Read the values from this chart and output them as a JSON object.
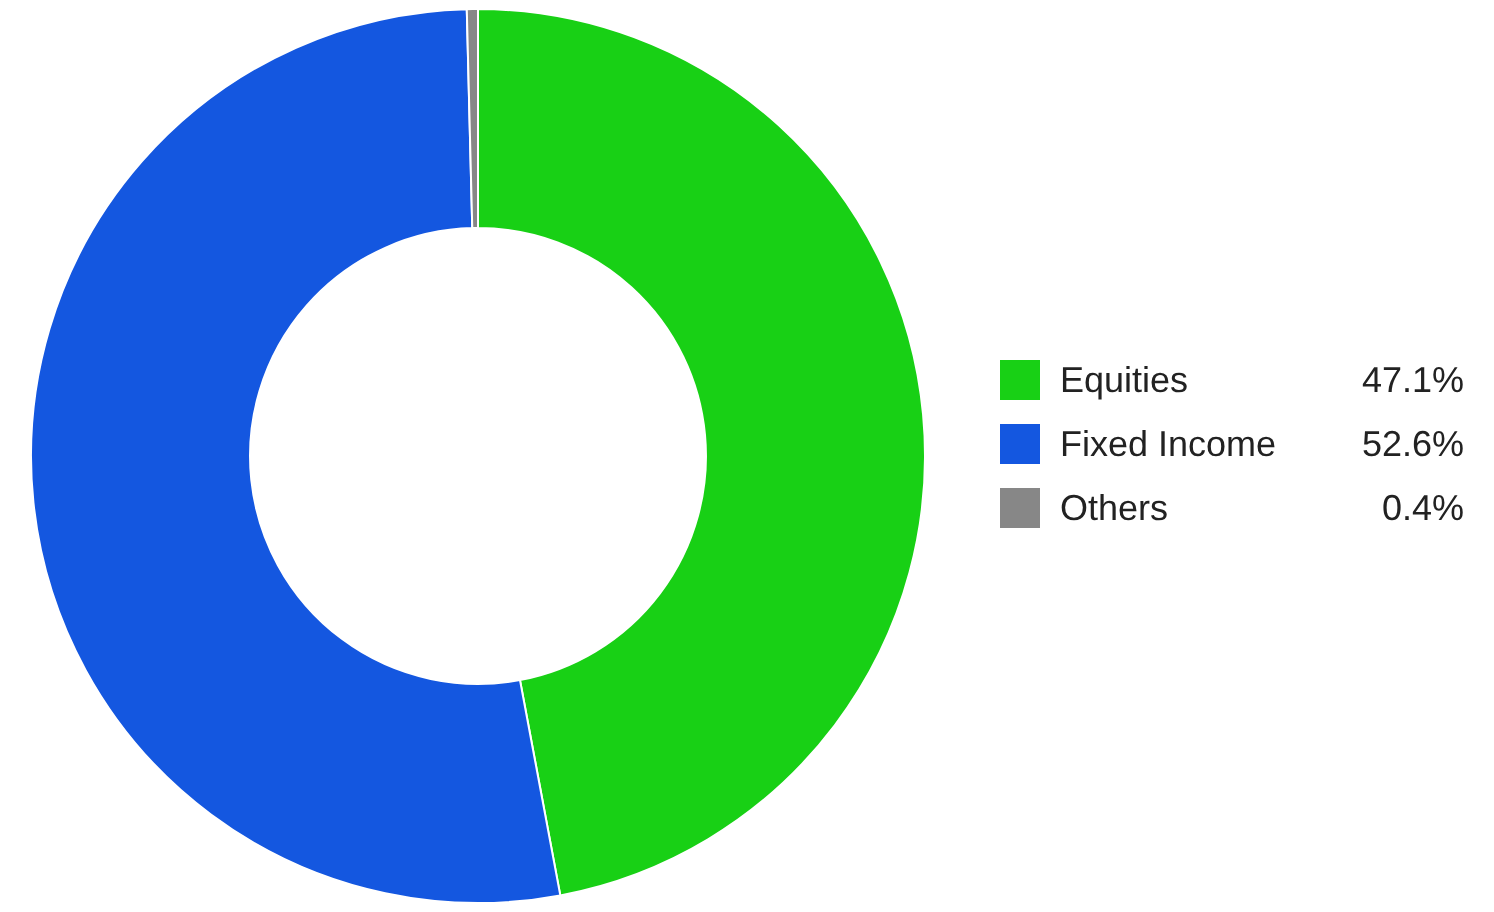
{
  "chart_data": {
    "type": "donut",
    "categories": [
      "Equities",
      "Fixed Income",
      "Others"
    ],
    "values": [
      47.1,
      52.6,
      0.4
    ],
    "value_labels": [
      "47.1%",
      "52.6%",
      "0.4%"
    ],
    "colors": [
      "#18d015",
      "#1457e0",
      "#878787"
    ],
    "legend": "right"
  }
}
